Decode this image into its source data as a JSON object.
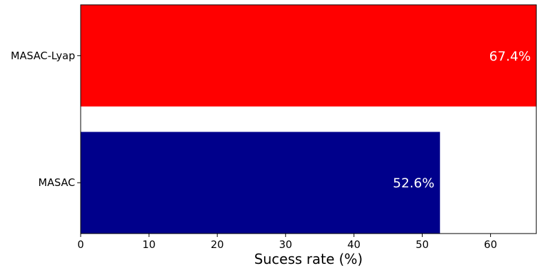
{
  "chart_data": {
    "type": "bar",
    "orientation": "horizontal",
    "title": "",
    "xlabel": "Sucess rate (%)",
    "ylabel": "",
    "xlim": [
      0,
      66.7
    ],
    "xticks": [
      0,
      10,
      20,
      30,
      40,
      50,
      60
    ],
    "grid": false,
    "categories": [
      "MASAC-Lyap",
      "MASAC"
    ],
    "values": [
      67.4,
      52.6
    ],
    "colors": [
      "#ff0000",
      "#00008b"
    ],
    "data_labels": [
      "67.4%",
      "52.6%"
    ],
    "data_label_color": "#ffffff"
  }
}
